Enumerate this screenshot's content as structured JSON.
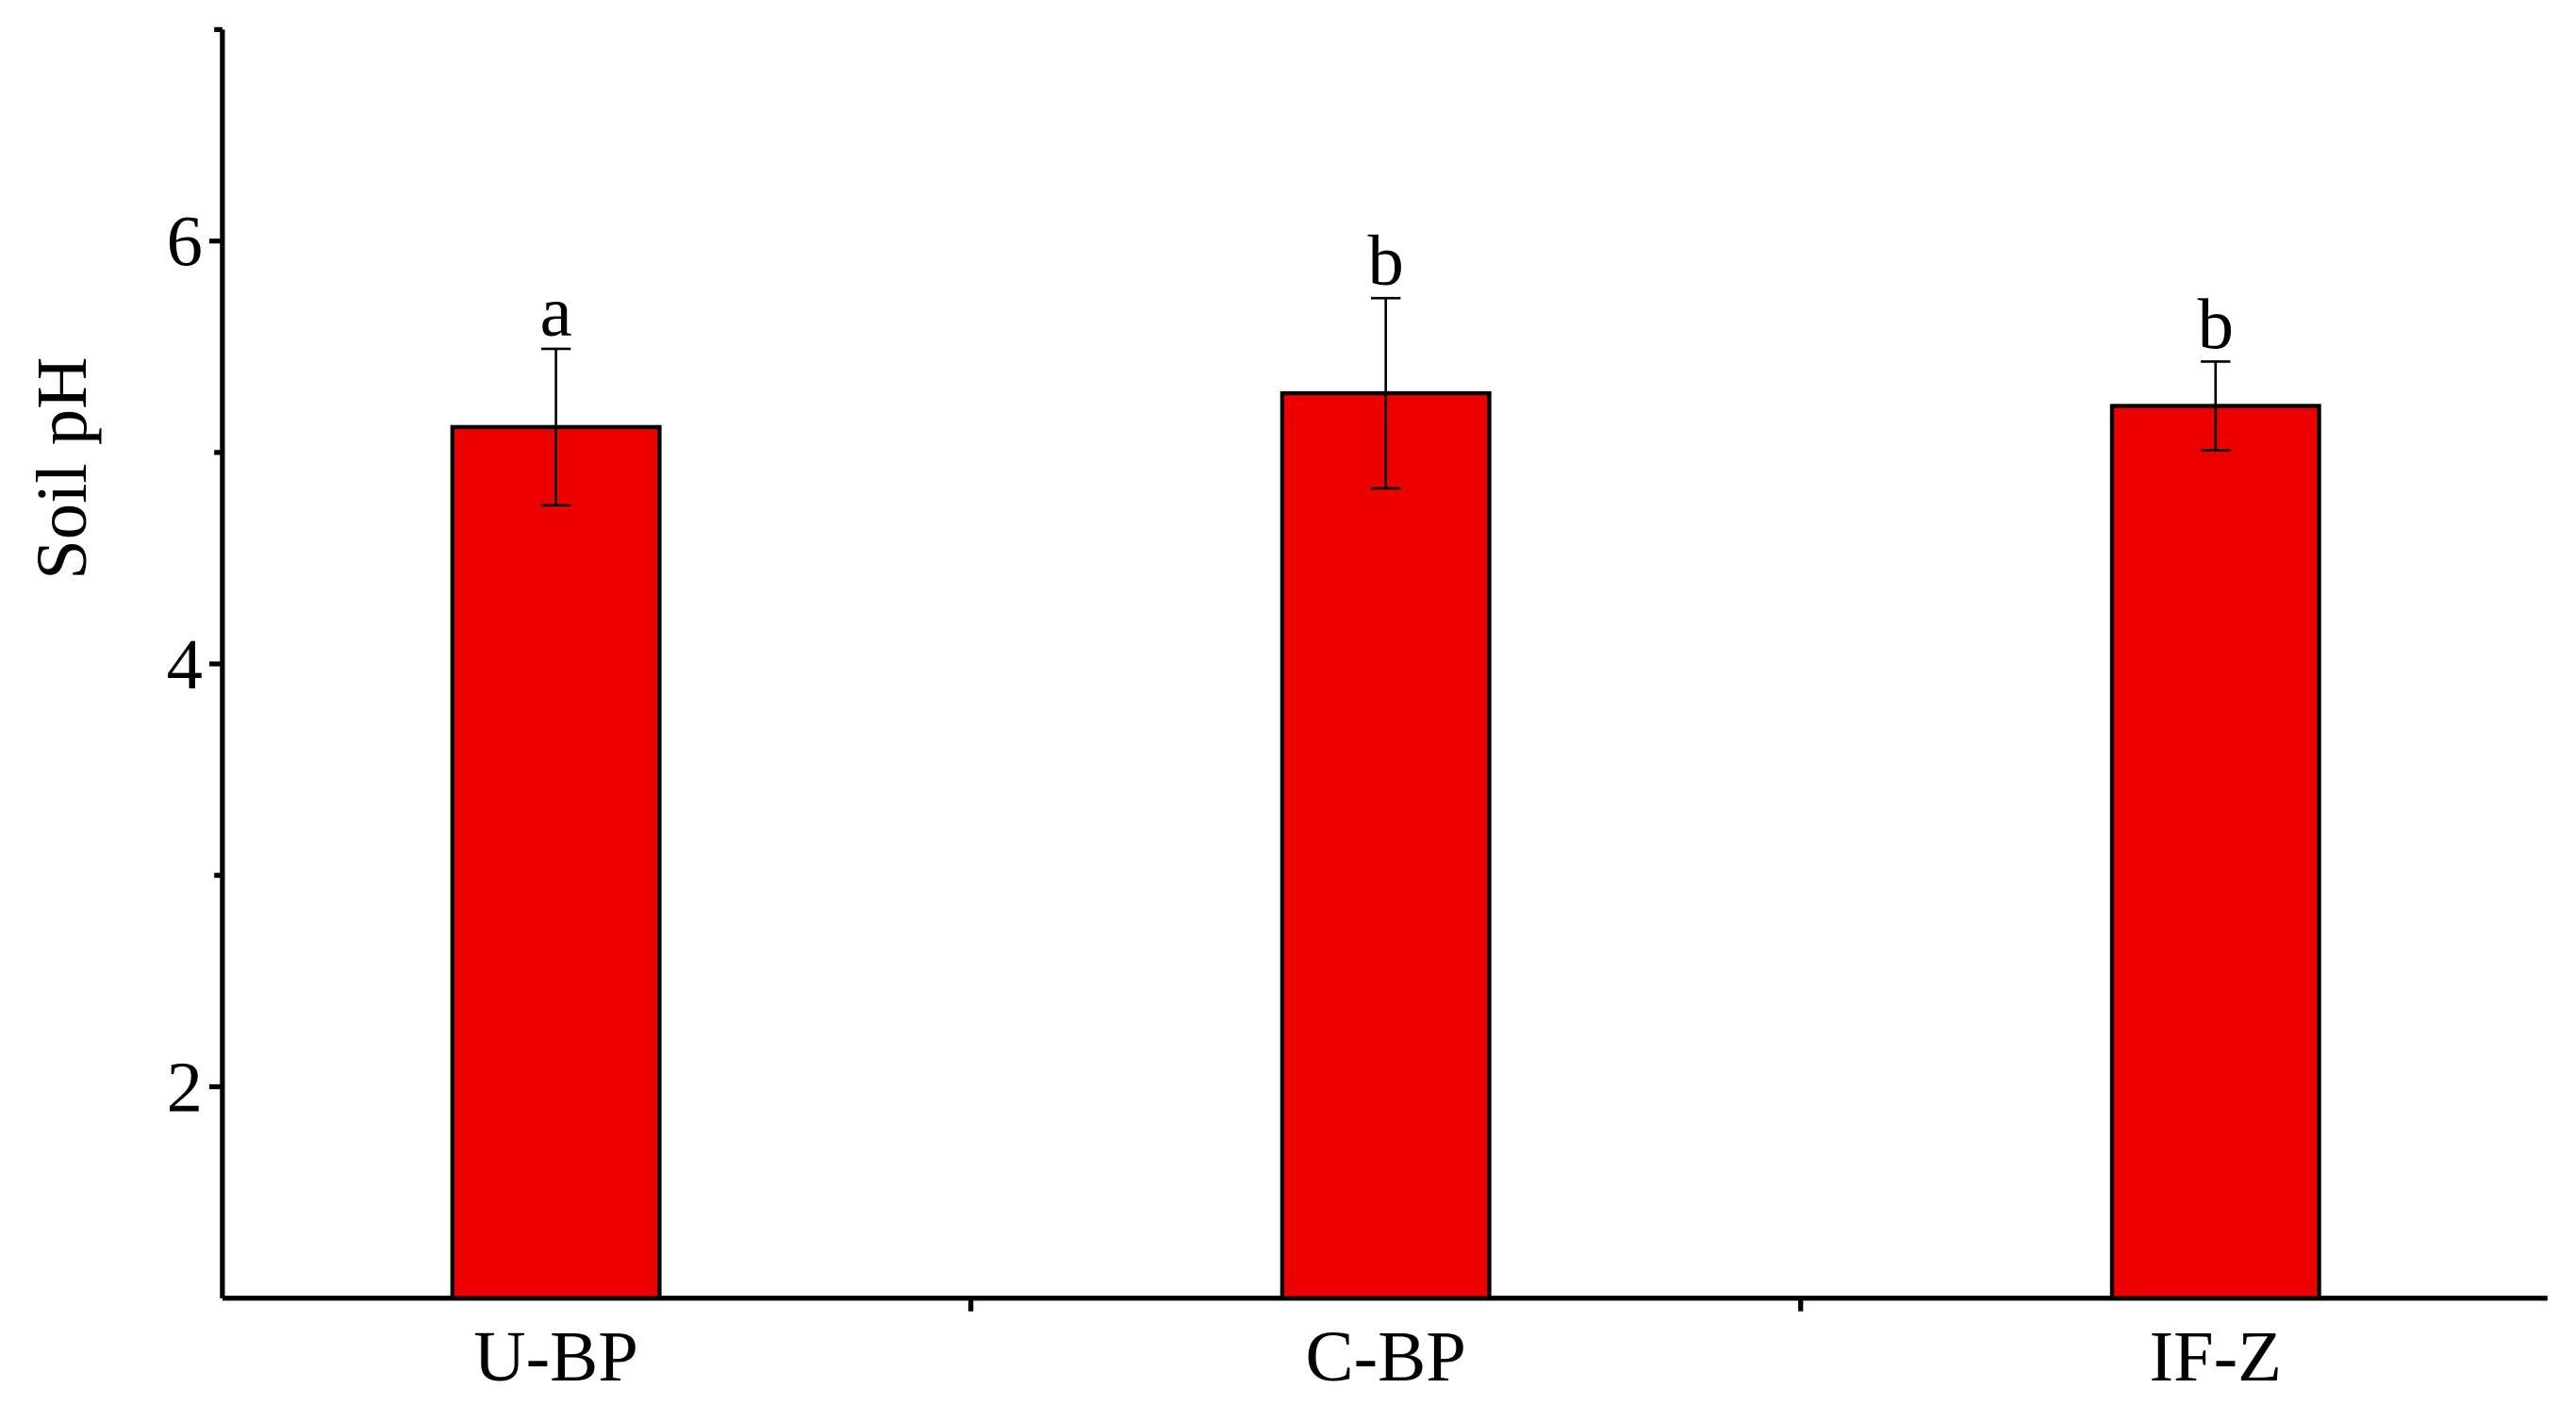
{
  "chart_data": {
    "type": "bar",
    "y_label": "Soil pH",
    "categories": [
      "U-BP",
      "C-BP",
      "IF-Z"
    ],
    "values": [
      5.12,
      5.28,
      5.22
    ],
    "errors": [
      0.37,
      0.45,
      0.21
    ],
    "labels": [
      "a",
      "b",
      "b"
    ],
    "color": "#ec0000",
    "ylim": [
      1,
      7
    ],
    "yticks": [
      2,
      4,
      6
    ],
    "yticks_minor": [
      3,
      5,
      7
    ]
  }
}
